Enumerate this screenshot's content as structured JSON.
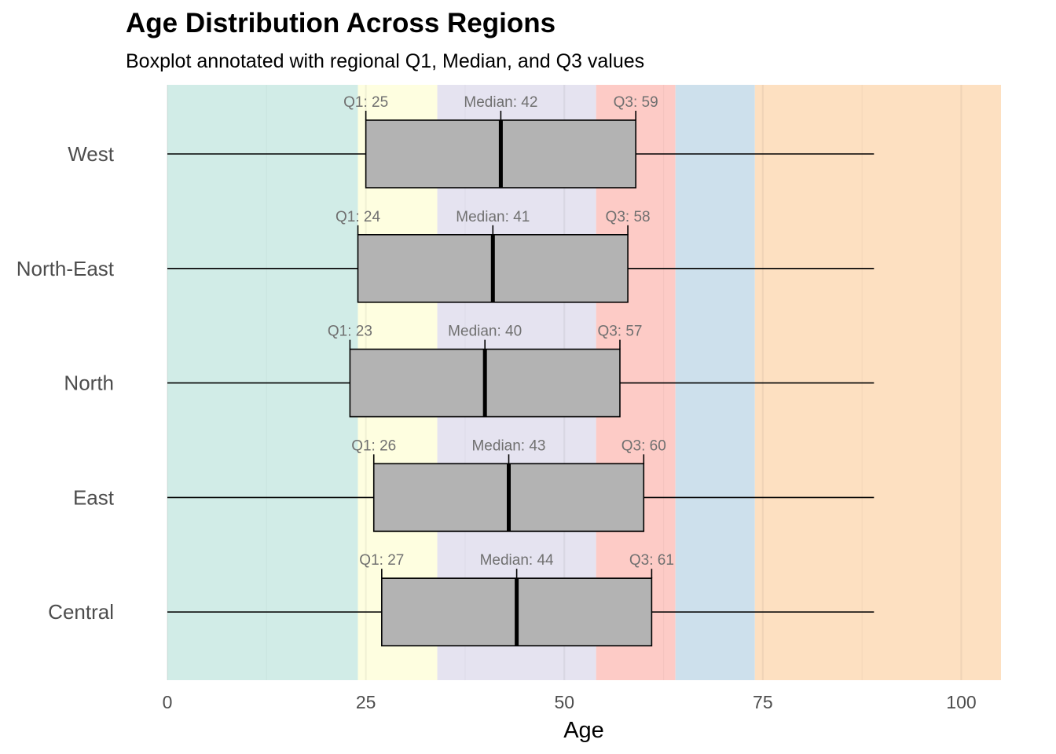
{
  "title": "Age Distribution Across Regions",
  "subtitle": "Boxplot annotated with regional Q1, Median, and Q3 values",
  "chart_data": {
    "type": "boxplot",
    "orientation": "horizontal",
    "title": "Age Distribution Across Regions",
    "subtitle": "Boxplot annotated with regional Q1, Median, and Q3 values",
    "xlabel": "Age",
    "ylabel": "",
    "xlim": [
      0,
      105
    ],
    "x_ticks": [
      0,
      25,
      50,
      75,
      100
    ],
    "grid": true,
    "categories": [
      "Central",
      "East",
      "North",
      "North-East",
      "West"
    ],
    "series": [
      {
        "region": "Central",
        "min": 0,
        "q1": 27,
        "median": 44,
        "q3": 61,
        "max": 89,
        "labels": [
          "Q1: 27",
          "Median: 44",
          "Q3: 61"
        ]
      },
      {
        "region": "East",
        "min": 0,
        "q1": 26,
        "median": 43,
        "q3": 60,
        "max": 89,
        "labels": [
          "Q1: 26",
          "Median: 43",
          "Q3: 60"
        ]
      },
      {
        "region": "North",
        "min": 0,
        "q1": 23,
        "median": 40,
        "q3": 57,
        "max": 89,
        "labels": [
          "Q1: 23",
          "Median: 40",
          "Q3: 57"
        ]
      },
      {
        "region": "North-East",
        "min": 0,
        "q1": 24,
        "median": 41,
        "q3": 58,
        "max": 89,
        "labels": [
          "Q1: 24",
          "Median: 41",
          "Q3: 58"
        ]
      },
      {
        "region": "West",
        "min": 0,
        "q1": 25,
        "median": 42,
        "q3": 59,
        "max": 89,
        "labels": [
          "Q1: 25",
          "Median: 42",
          "Q3: 59"
        ]
      }
    ],
    "background_bands": [
      {
        "from": 0,
        "to": 24,
        "color": "#d1ece7"
      },
      {
        "from": 24,
        "to": 34,
        "color": "#fefee0"
      },
      {
        "from": 34,
        "to": 54,
        "color": "#e5e3f0"
      },
      {
        "from": 54,
        "to": 64,
        "color": "#fdcbc6"
      },
      {
        "from": 64,
        "to": 74,
        "color": "#cde0ec"
      },
      {
        "from": 74,
        "to": 105,
        "color": "#fde0c1"
      }
    ],
    "box_color": "#b3b3b3"
  }
}
